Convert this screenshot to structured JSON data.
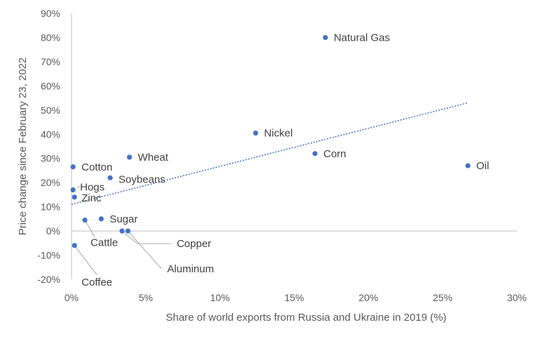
{
  "chart_data": {
    "type": "scatter",
    "xlabel": "Share of world exports from Russia and Ukraine in 2019 (%)",
    "ylabel": "Price change since February 23, 2022",
    "xlim": [
      0,
      30
    ],
    "ylim": [
      -20,
      90
    ],
    "x_ticks": [
      0,
      5,
      10,
      15,
      20,
      25,
      30
    ],
    "y_ticks": [
      -20,
      -10,
      0,
      10,
      20,
      30,
      40,
      50,
      60,
      70,
      80,
      90
    ],
    "x_tick_labels": [
      "0%",
      "5%",
      "10%",
      "15%",
      "20%",
      "25%",
      "30%"
    ],
    "y_tick_labels": [
      "-20%",
      "-10%",
      "0%",
      "10%",
      "20%",
      "30%",
      "40%",
      "50%",
      "60%",
      "70%",
      "80%",
      "90%"
    ],
    "grid": false,
    "marker_color": "#4472C4",
    "trendline": {
      "type": "linear",
      "style": "dotted",
      "color": "#4472C4",
      "x": [
        0,
        26.7
      ],
      "y": [
        11,
        53
      ]
    },
    "points": [
      {
        "name": "Natural Gas",
        "x": 17.1,
        "y": 80
      },
      {
        "name": "Nickel",
        "x": 12.4,
        "y": 40.5
      },
      {
        "name": "Corn",
        "x": 16.4,
        "y": 32
      },
      {
        "name": "Oil",
        "x": 26.7,
        "y": 27
      },
      {
        "name": "Wheat",
        "x": 3.9,
        "y": 30.5
      },
      {
        "name": "Cotton",
        "x": 0.1,
        "y": 26.5
      },
      {
        "name": "Soybeans",
        "x": 2.6,
        "y": 22
      },
      {
        "name": "Hogs",
        "x": 0.1,
        "y": 17
      },
      {
        "name": "Zinc",
        "x": 0.2,
        "y": 14
      },
      {
        "name": "Sugar",
        "x": 2.0,
        "y": 5
      },
      {
        "name": "Cattle",
        "x": 0.9,
        "y": 4.5
      },
      {
        "name": "Copper",
        "x": 3.4,
        "y": 0
      },
      {
        "name": "Aluminum",
        "x": 3.8,
        "y": 0
      },
      {
        "name": "Coffee",
        "x": 0.2,
        "y": -6
      }
    ]
  }
}
